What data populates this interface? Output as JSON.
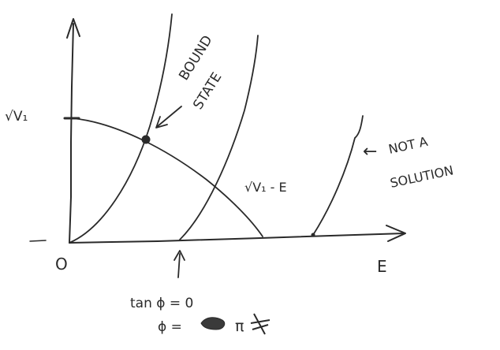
{
  "labels": {
    "origin": "O",
    "x_axis": "E",
    "y_tick": "√V₁",
    "curve_label": "√V₁ - E",
    "bound_state_line1": "BOUND",
    "bound_state_line2": "STATE",
    "not_solution_arrow": "←",
    "not_solution_line1": "NOT   A",
    "not_solution_line2": "SOLUTION",
    "tan_eq": "tan ϕ = 0",
    "phi_eq_prefix": "ϕ =",
    "phi_eq_suffix": "π"
  },
  "colors": {
    "ink": "#2a2a2a",
    "paper": "#ffffff"
  }
}
